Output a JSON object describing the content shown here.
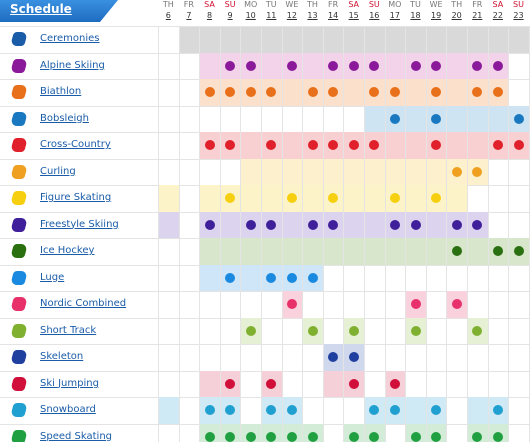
{
  "tab": "Schedule",
  "days": [
    {
      "wd": "TH",
      "d": 6
    },
    {
      "wd": "FR",
      "d": 7
    },
    {
      "wd": "SA",
      "d": 8
    },
    {
      "wd": "SU",
      "d": 9
    },
    {
      "wd": "MO",
      "d": 10
    },
    {
      "wd": "TU",
      "d": 11
    },
    {
      "wd": "WE",
      "d": 12
    },
    {
      "wd": "TH",
      "d": 13
    },
    {
      "wd": "FR",
      "d": 14
    },
    {
      "wd": "SA",
      "d": 15
    },
    {
      "wd": "SU",
      "d": 16
    },
    {
      "wd": "MO",
      "d": 17
    },
    {
      "wd": "TU",
      "d": 18
    },
    {
      "wd": "WE",
      "d": 19
    },
    {
      "wd": "TH",
      "d": 20
    },
    {
      "wd": "FR",
      "d": 21
    },
    {
      "wd": "SA",
      "d": 22
    },
    {
      "wd": "SU",
      "d": 23
    }
  ],
  "rows": [
    {
      "name": "Ceremonies",
      "color": "#1a5ca8",
      "bg": "#d9d9d9",
      "active": [
        7,
        8,
        9,
        10,
        11,
        12,
        13,
        14,
        15,
        16,
        17,
        18,
        19,
        20,
        21,
        22,
        23
      ],
      "medals": []
    },
    {
      "name": "Alpine Skiing",
      "color": "#8a1a9a",
      "bg": "#f3d3ea",
      "active": [
        8,
        9,
        10,
        11,
        12,
        13,
        14,
        15,
        16,
        17,
        18,
        19,
        20,
        21,
        22
      ],
      "medals": [
        9,
        10,
        12,
        14,
        15,
        16,
        18,
        19,
        21,
        22
      ]
    },
    {
      "name": "Biathlon",
      "color": "#e8701a",
      "bg": "#fbe0cc",
      "active": [
        8,
        9,
        10,
        11,
        12,
        13,
        14,
        15,
        16,
        17,
        18,
        19,
        20,
        21,
        22
      ],
      "medals": [
        8,
        9,
        10,
        11,
        13,
        14,
        16,
        17,
        19,
        21,
        22
      ]
    },
    {
      "name": "Bobsleigh",
      "color": "#1a78c0",
      "bg": "#cfe4f3",
      "active": [
        16,
        17,
        18,
        19,
        20,
        21,
        22,
        23
      ],
      "medals": [
        17,
        19,
        23
      ]
    },
    {
      "name": "Cross-Country",
      "color": "#e0202a",
      "bg": "#f8d0d2",
      "active": [
        8,
        9,
        10,
        11,
        12,
        13,
        14,
        15,
        16,
        17,
        18,
        19,
        20,
        21,
        22,
        23
      ],
      "medals": [
        8,
        9,
        11,
        13,
        14,
        15,
        16,
        19,
        22,
        23
      ]
    },
    {
      "name": "Curling",
      "color": "#f0a020",
      "bg": "#fdf0cc",
      "active": [
        10,
        11,
        12,
        13,
        14,
        15,
        16,
        17,
        18,
        19,
        20,
        21
      ],
      "medals": [
        20,
        21
      ]
    },
    {
      "name": "Figure Skating",
      "color": "#f6d010",
      "bg": "#fdf3c8",
      "active": [
        6,
        8,
        9,
        10,
        11,
        12,
        13,
        14,
        15,
        16,
        17,
        18,
        19,
        20
      ],
      "medals": [
        9,
        12,
        14,
        17,
        19
      ]
    },
    {
      "name": "Freestyle Skiing",
      "color": "#40209a",
      "bg": "#dcd4ee",
      "active": [
        6,
        8,
        9,
        10,
        11,
        12,
        13,
        14,
        15,
        16,
        17,
        18,
        19,
        20,
        21
      ],
      "medals": [
        8,
        10,
        11,
        13,
        14,
        17,
        18,
        20,
        21
      ]
    },
    {
      "name": "Ice Hockey",
      "color": "#2a7010",
      "bg": "#d8e6cc",
      "active": [
        8,
        9,
        10,
        11,
        12,
        13,
        14,
        15,
        16,
        17,
        18,
        19,
        20,
        21,
        22,
        23
      ],
      "medals": [
        20,
        22,
        23
      ]
    },
    {
      "name": "Luge",
      "color": "#1a8ae0",
      "bg": "#cfe6f8",
      "active": [
        8,
        9,
        10,
        11,
        12,
        13
      ],
      "medals": [
        9,
        11,
        12,
        13
      ]
    },
    {
      "name": "Nordic Combined",
      "color": "#e8306a",
      "bg": "#f9d2de",
      "active": [
        12,
        18,
        20
      ],
      "medals": [
        12,
        18,
        20
      ]
    },
    {
      "name": "Short Track",
      "color": "#80b030",
      "bg": "#e6f0d4",
      "active": [
        10,
        13,
        15,
        18,
        21
      ],
      "medals": [
        10,
        13,
        15,
        18,
        21
      ]
    },
    {
      "name": "Skeleton",
      "color": "#2040a0",
      "bg": "#d0d8ee",
      "active": [
        14,
        15
      ],
      "medals": [
        14,
        15
      ]
    },
    {
      "name": "Ski Jumping",
      "color": "#d0103a",
      "bg": "#f6d0d8",
      "active": [
        8,
        9,
        11,
        14,
        15,
        17
      ],
      "medals": [
        9,
        11,
        15,
        17
      ]
    },
    {
      "name": "Snowboard",
      "color": "#20a0d0",
      "bg": "#cfeaf5",
      "active": [
        6,
        8,
        9,
        11,
        12,
        16,
        17,
        18,
        19,
        21,
        22
      ],
      "medals": [
        8,
        9,
        11,
        12,
        16,
        17,
        19,
        22
      ]
    },
    {
      "name": "Speed Skating",
      "color": "#20a040",
      "bg": "#d2ecd8",
      "active": [
        8,
        9,
        10,
        11,
        12,
        13,
        15,
        16,
        18,
        19,
        21,
        22
      ],
      "medals": [
        8,
        9,
        10,
        11,
        12,
        13,
        15,
        16,
        18,
        19,
        21,
        22
      ]
    }
  ]
}
